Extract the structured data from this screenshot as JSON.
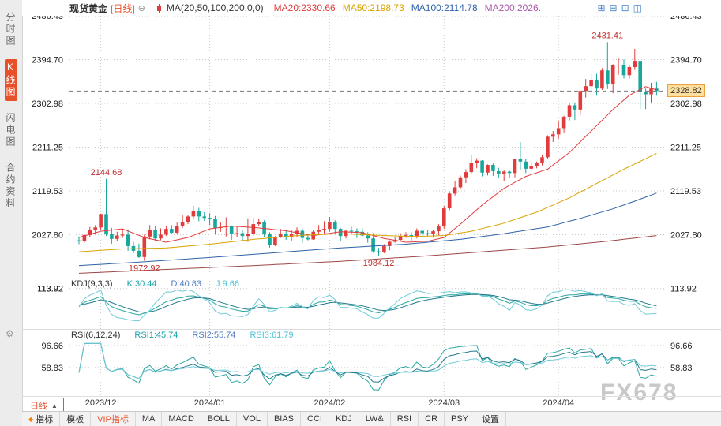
{
  "header": {
    "title": "现货黄金",
    "period_tag": "[日线]",
    "collapse_icon": "⊖",
    "ma_label": "MA(20,50,100,200,0,0)",
    "ma_values": [
      {
        "text": "MA20:2330.66",
        "color": "#e23b3c"
      },
      {
        "text": "MA50:2198.73",
        "color": "#d9a300"
      },
      {
        "text": "MA100:2114.78",
        "color": "#2f63a8"
      },
      {
        "text": "MA200:2026.",
        "color": "#aa55aa"
      }
    ],
    "window_icons": [
      {
        "glyph": "⊞",
        "name": "tile-windows-icon"
      },
      {
        "glyph": "⊟",
        "name": "horizontal-split-icon"
      },
      {
        "glyph": "⊡",
        "name": "single-pane-icon"
      },
      {
        "glyph": "◫",
        "name": "vertical-split-icon"
      }
    ]
  },
  "sidebar": {
    "items": [
      {
        "label": "分时图",
        "active": false
      },
      {
        "label": "K线图",
        "active": true
      },
      {
        "label": "闪电图",
        "active": false
      },
      {
        "label": "合约资料",
        "active": false
      }
    ]
  },
  "kdj": {
    "label": "KDJ(9,3,3)",
    "values": [
      {
        "text": "K:30.44",
        "color": "#18a3a8"
      },
      {
        "text": "D:40.83",
        "color": "#4f7dbf"
      },
      {
        "text": "J:9.66",
        "color": "#49c2d8"
      }
    ],
    "axis_value": 113.92,
    "line_colors": [
      "#2aa7a0",
      "#22798c",
      "#6fcbd9"
    ]
  },
  "rsi": {
    "label": "RSI(6,12,24)",
    "values": [
      {
        "text": "RSI1:45.74",
        "color": "#18a3a8"
      },
      {
        "text": "RSI2:55.74",
        "color": "#4f7dbf"
      },
      {
        "text": "RSI3:61.79",
        "color": "#49c2d8"
      }
    ],
    "axis_values": [
      96.66,
      58.83
    ],
    "periods": [
      6,
      12,
      24
    ],
    "line_colors": [
      "#2aa7a0",
      "#22798c",
      "#6fcbd9"
    ]
  },
  "bottom": {
    "period_label": "日线",
    "tabs": [
      {
        "label": "指标",
        "icon": "◆"
      },
      {
        "label": "模板"
      },
      {
        "label": "VIP指标",
        "accent": true
      },
      {
        "label": "MA"
      },
      {
        "label": "MACD"
      },
      {
        "label": "BOLL"
      },
      {
        "label": "VOL"
      },
      {
        "label": "BIAS"
      },
      {
        "label": "CCI"
      },
      {
        "label": "KDJ"
      },
      {
        "label": "LW&"
      },
      {
        "label": "RSI"
      },
      {
        "label": "CR"
      },
      {
        "label": "PSY"
      },
      {
        "label": "设置"
      }
    ]
  },
  "watermark": {
    "text": "FX678"
  },
  "chart_data": {
    "type": "candlestick",
    "symbol": "现货黄金",
    "period": "日线",
    "current_price": 2328.82,
    "y_ticks": [
      2486.43,
      2394.7,
      2302.98,
      2211.25,
      2119.53,
      2027.8
    ],
    "x_ticks": [
      {
        "index": 4,
        "label": "2023/12"
      },
      {
        "index": 24,
        "label": "2024/01"
      },
      {
        "index": 46,
        "label": "2024/02"
      },
      {
        "index": 67,
        "label": "2024/03"
      },
      {
        "index": 88,
        "label": "2024/04"
      }
    ],
    "colors": {
      "up": "#e23b3c",
      "down": "#17a79b",
      "grid": "#c9c9c9",
      "axis_text": "#222222",
      "date_text": "#333333",
      "annotation": "#c03030",
      "dash_line": "#777777",
      "separator": "#dddddd"
    },
    "candles": [
      [
        2016,
        2024,
        2008,
        2014
      ],
      [
        2014,
        2030,
        2011,
        2027
      ],
      [
        2027,
        2044,
        2022,
        2038
      ],
      [
        2038,
        2048,
        2030,
        2043
      ],
      [
        2043,
        2072,
        2038,
        2071
      ],
      [
        2071,
        2144.68,
        2025,
        2029
      ],
      [
        2029,
        2042,
        2009,
        2019
      ],
      [
        2019,
        2034,
        2015,
        2026
      ],
      [
        2026,
        2040,
        2021,
        2028
      ],
      [
        2028,
        2039,
        1994,
        2004
      ],
      [
        2004,
        2013,
        1989,
        1994
      ],
      [
        1994,
        2009,
        1979,
        1981
      ],
      [
        1981,
        2028,
        1972.92,
        2024
      ],
      [
        2024,
        2048,
        2018,
        2037
      ],
      [
        2037,
        2045,
        2015,
        2020
      ],
      [
        2020,
        2041,
        2016,
        2028
      ],
      [
        2028,
        2047,
        2025,
        2040
      ],
      [
        2040,
        2048,
        2029,
        2032
      ],
      [
        2032,
        2053,
        2029,
        2046
      ],
      [
        2046,
        2070,
        2042,
        2054
      ],
      [
        2054,
        2068,
        2050,
        2066
      ],
      [
        2066,
        2088,
        2061,
        2078
      ],
      [
        2078,
        2084,
        2056,
        2066
      ],
      [
        2066,
        2075,
        2057,
        2063
      ],
      [
        2063,
        2073,
        2048,
        2060
      ],
      [
        2060,
        2067,
        2030,
        2042
      ],
      [
        2042,
        2055,
        2034,
        2044
      ],
      [
        2044,
        2064,
        2024,
        2046
      ],
      [
        2046,
        2047,
        2017,
        2029
      ],
      [
        2029,
        2044,
        2022,
        2031
      ],
      [
        2031,
        2037,
        2014,
        2025
      ],
      [
        2025,
        2062,
        2013,
        2029
      ],
      [
        2029,
        2063,
        2026,
        2050
      ],
      [
        2050,
        2062,
        2045,
        2055
      ],
      [
        2055,
        2058,
        2022,
        2029
      ],
      [
        2029,
        2033,
        2001,
        2007
      ],
      [
        2007,
        2025,
        2004,
        2023
      ],
      [
        2023,
        2040,
        2021,
        2030
      ],
      [
        2030,
        2038,
        2017,
        2022
      ],
      [
        2022,
        2037,
        2014,
        2030
      ],
      [
        2030,
        2043,
        2022,
        2036
      ],
      [
        2036,
        2041,
        2011,
        2021
      ],
      [
        2021,
        2029,
        2016,
        2018
      ],
      [
        2018,
        2038,
        2017,
        2034
      ],
      [
        2034,
        2048,
        2030,
        2038
      ],
      [
        2038,
        2056,
        2030,
        2040
      ],
      [
        2040,
        2065,
        2034,
        2055
      ],
      [
        2055,
        2058,
        2029,
        2040
      ],
      [
        2040,
        2042,
        2014,
        2025
      ],
      [
        2025,
        2038,
        2020,
        2036
      ],
      [
        2036,
        2044,
        2030,
        2035
      ],
      [
        2035,
        2041,
        2021,
        2034
      ],
      [
        2034,
        2041,
        2024,
        2026
      ],
      [
        2026,
        2033,
        2011,
        2020
      ],
      [
        2020,
        2031,
        1990,
        1993
      ],
      [
        1993,
        2000,
        1984.12,
        1992
      ],
      [
        1992,
        2008,
        1989,
        2004
      ],
      [
        2004,
        2016,
        1995,
        2013
      ],
      [
        2013,
        2022,
        2011,
        2017
      ],
      [
        2017,
        2031,
        2015,
        2025
      ],
      [
        2025,
        2033,
        2021,
        2027
      ],
      [
        2027,
        2034,
        2015,
        2025
      ],
      [
        2025,
        2041,
        2020,
        2036
      ],
      [
        2036,
        2039,
        2025,
        2031
      ],
      [
        2031,
        2038,
        2024,
        2030
      ],
      [
        2030,
        2038,
        2023,
        2035
      ],
      [
        2035,
        2050,
        2027,
        2045
      ],
      [
        2045,
        2088,
        2040,
        2083
      ],
      [
        2083,
        2119,
        2079,
        2114
      ],
      [
        2114,
        2141,
        2110,
        2127
      ],
      [
        2127,
        2152,
        2123,
        2148
      ],
      [
        2148,
        2165,
        2136,
        2159
      ],
      [
        2159,
        2195,
        2154,
        2179
      ],
      [
        2179,
        2188,
        2167,
        2183
      ],
      [
        2183,
        2184,
        2150,
        2158
      ],
      [
        2158,
        2175,
        2152,
        2174
      ],
      [
        2174,
        2177,
        2151,
        2161
      ],
      [
        2161,
        2168,
        2146,
        2156
      ],
      [
        2156,
        2163,
        2141,
        2160
      ],
      [
        2160,
        2162,
        2146,
        2157
      ],
      [
        2157,
        2186,
        2148,
        2186
      ],
      [
        2186,
        2222,
        2164,
        2181
      ],
      [
        2181,
        2186,
        2157,
        2166
      ],
      [
        2166,
        2181,
        2163,
        2172
      ],
      [
        2172,
        2181,
        2167,
        2178
      ],
      [
        2178,
        2194,
        2173,
        2190
      ],
      [
        2190,
        2236,
        2187,
        2233
      ],
      [
        2233,
        2245,
        2222,
        2238
      ],
      [
        2238,
        2266,
        2229,
        2251
      ],
      [
        2251,
        2277,
        2242,
        2275
      ],
      [
        2275,
        2305,
        2267,
        2299
      ],
      [
        2299,
        2305,
        2268,
        2290
      ],
      [
        2290,
        2330,
        2279,
        2329
      ],
      [
        2329,
        2354,
        2315,
        2339
      ],
      [
        2339,
        2365,
        2332,
        2352
      ],
      [
        2352,
        2365,
        2319,
        2334
      ],
      [
        2334,
        2377,
        2331,
        2372
      ],
      [
        2372,
        2431.41,
        2333,
        2344
      ],
      [
        2344,
        2385,
        2324,
        2383
      ],
      [
        2383,
        2398,
        2363,
        2384
      ],
      [
        2384,
        2395,
        2355,
        2362
      ],
      [
        2362,
        2384,
        2355,
        2379
      ],
      [
        2379,
        2417,
        2373,
        2392
      ],
      [
        2392,
        2393,
        2291,
        2327
      ],
      [
        2327,
        2334,
        2291,
        2322
      ],
      [
        2322,
        2346,
        2305,
        2334
      ],
      [
        2334,
        2348,
        2319,
        2328.82
      ]
    ],
    "ma_lines": [
      {
        "name": "MA20",
        "color": "#e23b3c",
        "points": [
          [
            0,
            2022
          ],
          [
            4,
            2035
          ],
          [
            8,
            2040
          ],
          [
            12,
            2022
          ],
          [
            16,
            2012
          ],
          [
            20,
            2022
          ],
          [
            24,
            2040
          ],
          [
            28,
            2046
          ],
          [
            33,
            2042
          ],
          [
            38,
            2036
          ],
          [
            43,
            2026
          ],
          [
            48,
            2034
          ],
          [
            52,
            2032
          ],
          [
            56,
            2020
          ],
          [
            60,
            2012
          ],
          [
            64,
            2014
          ],
          [
            67,
            2022
          ],
          [
            70,
            2050
          ],
          [
            74,
            2090
          ],
          [
            78,
            2125
          ],
          [
            82,
            2150
          ],
          [
            86,
            2165
          ],
          [
            90,
            2200
          ],
          [
            94,
            2245
          ],
          [
            98,
            2290
          ],
          [
            101,
            2320
          ],
          [
            104,
            2338
          ],
          [
            106,
            2331
          ]
        ]
      },
      {
        "name": "MA50",
        "color": "#d9a300",
        "points": [
          [
            0,
            1992
          ],
          [
            8,
            1998
          ],
          [
            16,
            2000
          ],
          [
            24,
            2008
          ],
          [
            32,
            2018
          ],
          [
            40,
            2026
          ],
          [
            48,
            2030
          ],
          [
            56,
            2026
          ],
          [
            62,
            2024
          ],
          [
            67,
            2026
          ],
          [
            72,
            2035
          ],
          [
            78,
            2052
          ],
          [
            84,
            2075
          ],
          [
            90,
            2105
          ],
          [
            95,
            2135
          ],
          [
            100,
            2165
          ],
          [
            106,
            2198
          ]
        ]
      },
      {
        "name": "MA100",
        "color": "#2f63a8",
        "points": [
          [
            0,
            1963
          ],
          [
            12,
            1971
          ],
          [
            24,
            1980
          ],
          [
            36,
            1990
          ],
          [
            48,
            2000
          ],
          [
            60,
            2008
          ],
          [
            70,
            2018
          ],
          [
            78,
            2030
          ],
          [
            86,
            2044
          ],
          [
            92,
            2062
          ],
          [
            98,
            2082
          ],
          [
            102,
            2098
          ],
          [
            106,
            2115
          ]
        ]
      },
      {
        "name": "MA200",
        "color": "#9c4848",
        "points": [
          [
            0,
            1947
          ],
          [
            16,
            1955
          ],
          [
            32,
            1963
          ],
          [
            48,
            1972
          ],
          [
            62,
            1982
          ],
          [
            74,
            1992
          ],
          [
            86,
            2002
          ],
          [
            96,
            2013
          ],
          [
            106,
            2026
          ]
        ]
      }
    ],
    "annotations": [
      {
        "text": "2144.68",
        "index": 5,
        "price": 2144.68,
        "side": "above"
      },
      {
        "text": "1972.92",
        "index": 12,
        "price": 1972.92,
        "side": "below"
      },
      {
        "text": "1984.12",
        "index": 55,
        "price": 1984.12,
        "side": "below"
      },
      {
        "text": "2431.41",
        "index": 97,
        "price": 2431.41,
        "side": "above"
      }
    ]
  }
}
